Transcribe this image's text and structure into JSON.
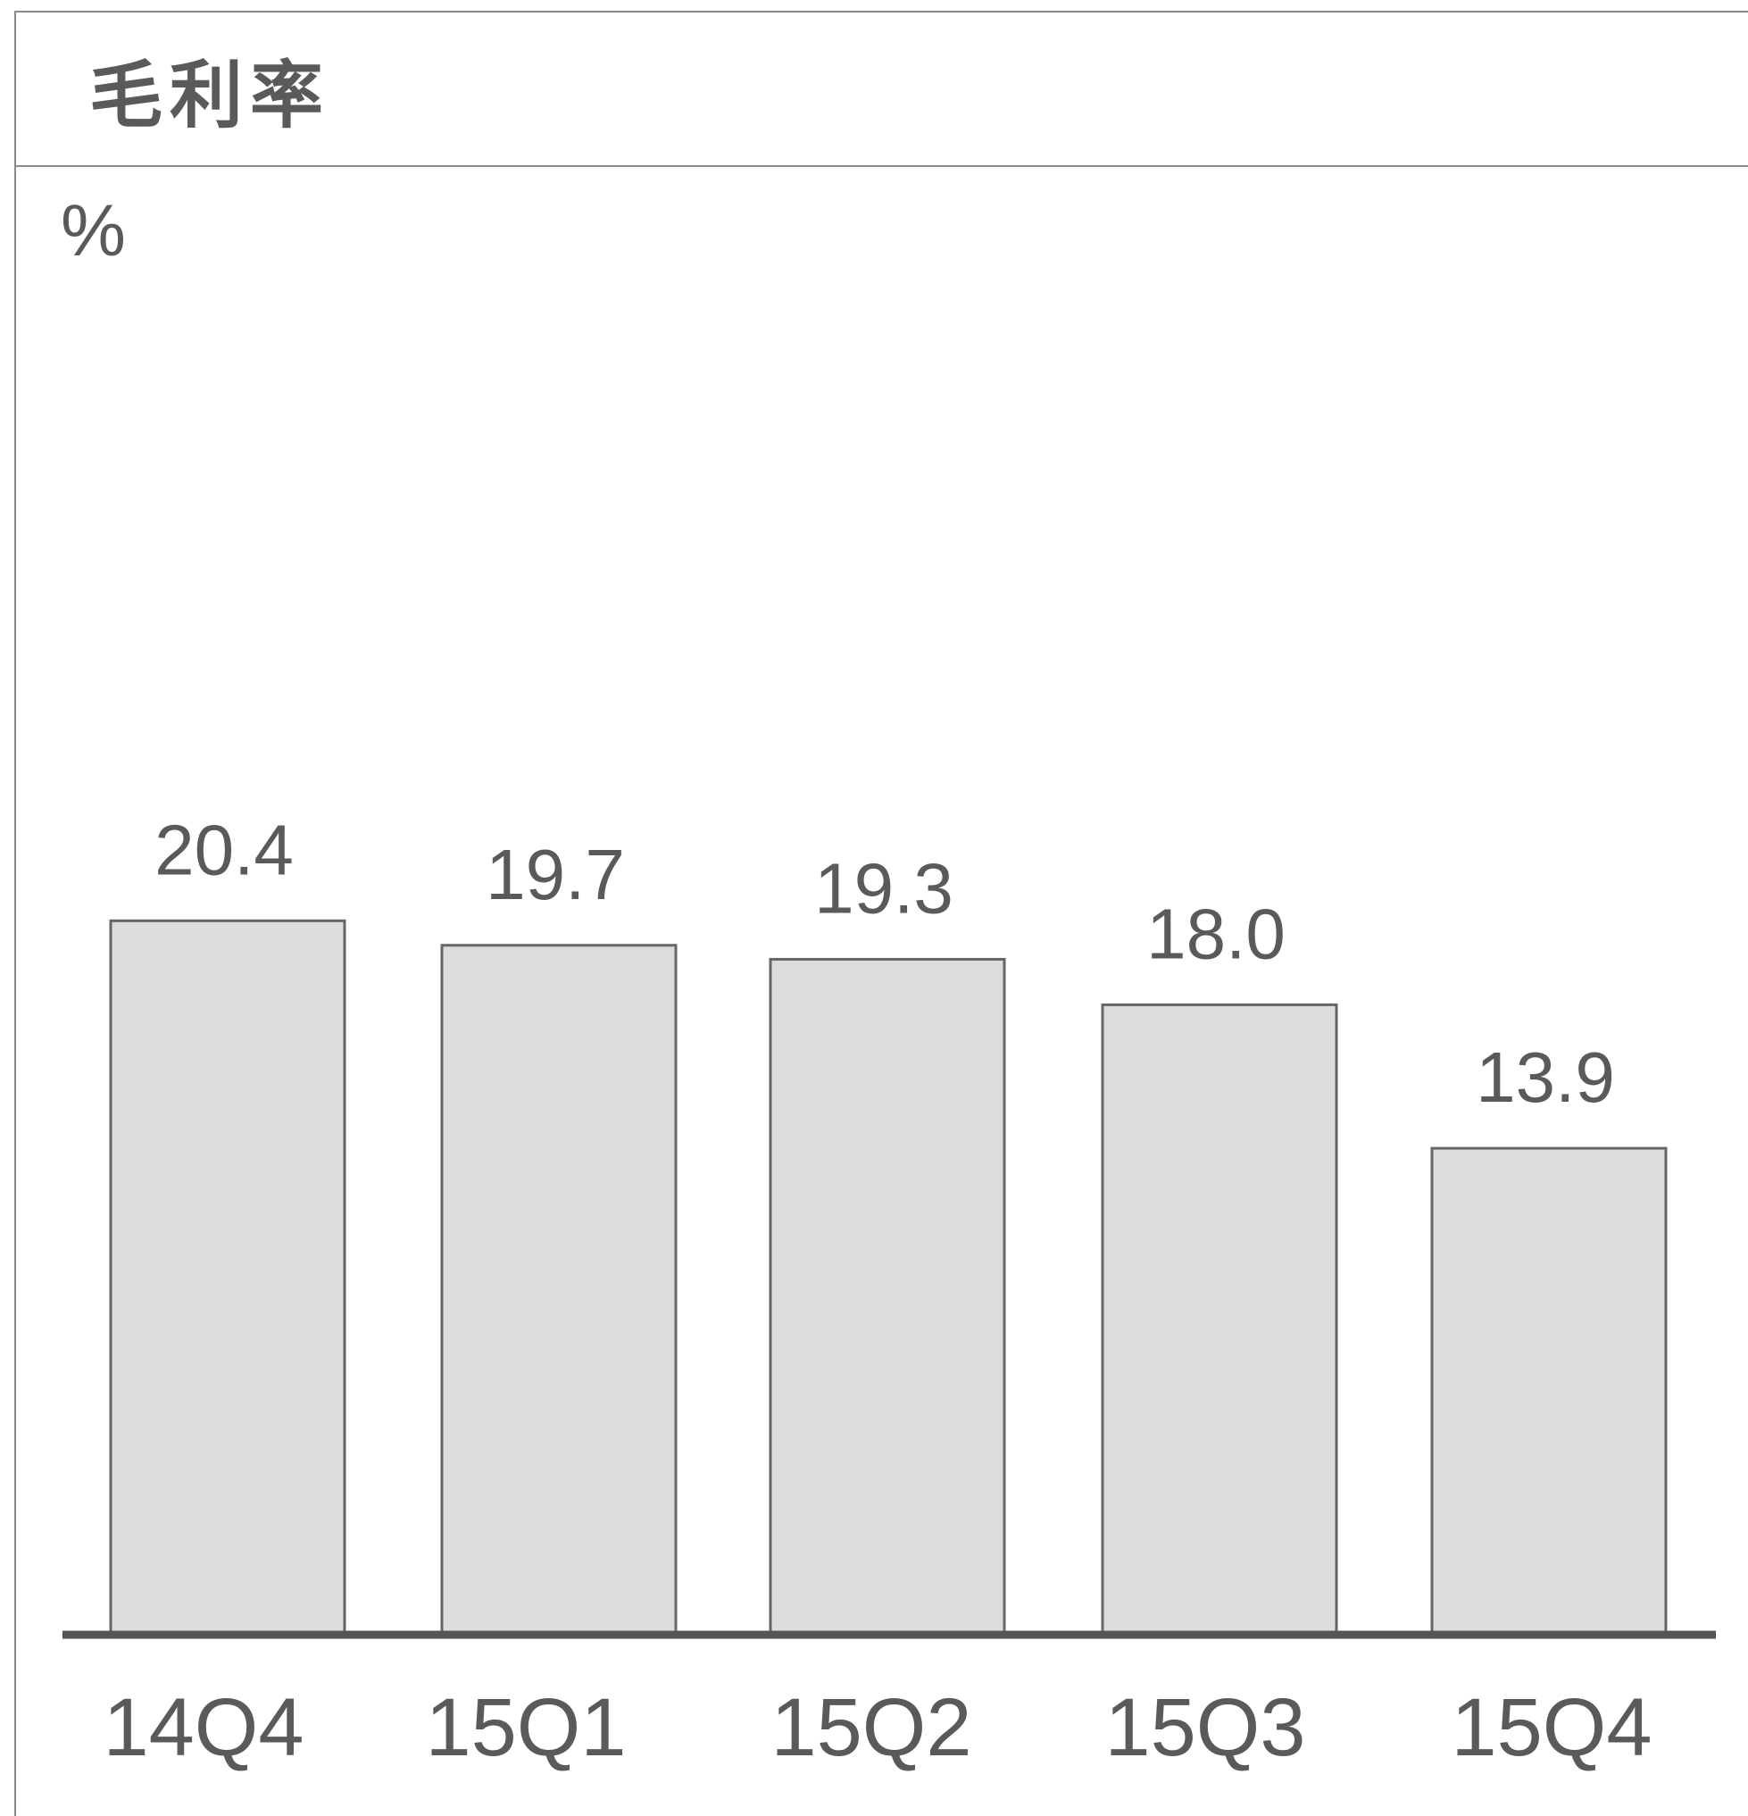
{
  "chart_data": {
    "type": "bar",
    "title": "毛利率",
    "ylabel": "%",
    "categories": [
      "14Q4",
      "15Q1",
      "15Q2",
      "15Q3",
      "15Q4"
    ],
    "values": [
      20.4,
      19.7,
      19.3,
      18.0,
      13.9
    ],
    "data_labels": [
      "20.4",
      "19.7",
      "19.3",
      "18.0",
      "13.9"
    ],
    "ylim": [
      0,
      25
    ],
    "grid": false,
    "legend": "none",
    "colors": {
      "bar_fill": "#dcdcdc",
      "bar_stroke": "#666666",
      "axis": "#555555",
      "text": "#5a5a5a"
    }
  }
}
